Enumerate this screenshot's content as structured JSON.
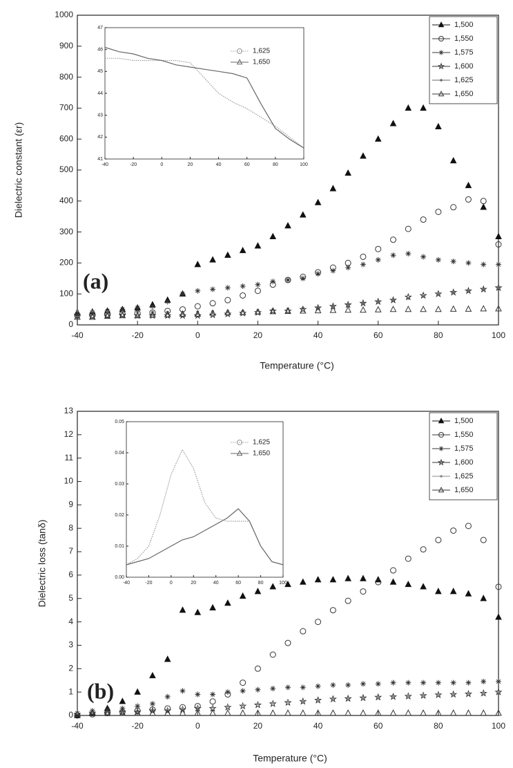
{
  "chart_data": [
    {
      "type": "scatter",
      "xlabel": "Temperature (°C)",
      "ylabel": "Dielectric constant (εr)",
      "annotation": "(a)",
      "xlim": [
        -40,
        100
      ],
      "ylim": [
        0,
        1000
      ],
      "xticks": [
        -40,
        -20,
        0,
        20,
        40,
        60,
        80,
        100
      ],
      "yticks": [
        0,
        100,
        200,
        300,
        400,
        500,
        600,
        700,
        800,
        900,
        1000
      ],
      "legend": "upper right",
      "x": [
        -40,
        -35,
        -30,
        -25,
        -20,
        -15,
        -10,
        -5,
        0,
        5,
        10,
        15,
        20,
        25,
        30,
        35,
        40,
        45,
        50,
        55,
        60,
        65,
        70,
        75,
        80,
        85,
        90,
        95,
        100
      ],
      "series": [
        {
          "name": "1,500",
          "color": "#111111",
          "marker": "triangle-filled",
          "values": [
            40,
            42,
            45,
            50,
            55,
            65,
            80,
            100,
            195,
            210,
            225,
            240,
            255,
            285,
            320,
            355,
            395,
            440,
            490,
            545,
            600,
            650,
            700,
            700,
            640,
            530,
            450,
            380,
            285
          ]
        },
        {
          "name": "1,550",
          "color": "#333333",
          "marker": "circle",
          "values": [
            30,
            30,
            32,
            35,
            38,
            40,
            45,
            50,
            60,
            70,
            80,
            95,
            110,
            130,
            145,
            155,
            170,
            185,
            200,
            220,
            245,
            275,
            310,
            340,
            365,
            380,
            405,
            400,
            260
          ]
        },
        {
          "name": "1,575",
          "color": "#333333",
          "marker": "asterisk",
          "values": [
            35,
            40,
            45,
            50,
            55,
            60,
            75,
            100,
            110,
            115,
            120,
            125,
            130,
            140,
            145,
            150,
            165,
            175,
            185,
            195,
            210,
            225,
            230,
            220,
            210,
            205,
            200,
            195,
            195
          ]
        },
        {
          "name": "1,600",
          "color": "#333333",
          "marker": "star",
          "values": [
            30,
            28,
            30,
            32,
            30,
            30,
            30,
            30,
            30,
            32,
            35,
            38,
            40,
            45,
            45,
            50,
            55,
            60,
            65,
            70,
            75,
            80,
            90,
            95,
            100,
            105,
            110,
            115,
            120
          ]
        },
        {
          "name": "1,625",
          "color": "#666666",
          "marker": "dot",
          "values": [
            45,
            44,
            43,
            42,
            42,
            41,
            41,
            41,
            42,
            43,
            44,
            45,
            47,
            50,
            52,
            55,
            58,
            62,
            66,
            70,
            75,
            80,
            86,
            92,
            98,
            104,
            110,
            116,
            122
          ]
        },
        {
          "name": "1,650",
          "color": "#333333",
          "marker": "triangle",
          "values": [
            25,
            25,
            28,
            30,
            30,
            32,
            33,
            35,
            35,
            38,
            40,
            40,
            42,
            43,
            44,
            45,
            46,
            47,
            48,
            48,
            49,
            50,
            50,
            50,
            50,
            51,
            51,
            52,
            52
          ]
        }
      ]
    },
    {
      "type": "line",
      "xlim": [
        -40,
        100
      ],
      "ylim": [
        41,
        47
      ],
      "xticks": [
        -40,
        -20,
        0,
        20,
        40,
        60,
        80,
        100
      ],
      "yticks": [
        41,
        42,
        43,
        44,
        45,
        46,
        47
      ],
      "legend": "upper right",
      "x": [
        -40,
        -30,
        -20,
        -10,
        0,
        10,
        20,
        30,
        40,
        50,
        60,
        70,
        80,
        90,
        100
      ],
      "series": [
        {
          "name": "1,625",
          "color": "#999999",
          "marker": "circle",
          "values": [
            45.6,
            45.6,
            45.5,
            45.5,
            45.5,
            45.5,
            45.4,
            44.7,
            44.0,
            43.6,
            43.3,
            42.9,
            42.5,
            42.0,
            41.5
          ]
        },
        {
          "name": "1,650",
          "color": "#666666",
          "marker": "triangle",
          "values": [
            46.1,
            45.9,
            45.8,
            45.6,
            45.5,
            45.3,
            45.2,
            45.1,
            45.0,
            44.9,
            44.7,
            43.5,
            42.4,
            41.9,
            41.5
          ]
        }
      ]
    },
    {
      "type": "scatter",
      "xlabel": "Temperature (°C)",
      "ylabel": "Dielectric loss (tanδ)",
      "annotation": "(b)",
      "xlim": [
        -40,
        100
      ],
      "ylim": [
        0,
        13
      ],
      "xticks": [
        -40,
        -20,
        0,
        20,
        40,
        60,
        80,
        100
      ],
      "yticks": [
        0,
        1,
        2,
        3,
        4,
        5,
        6,
        7,
        8,
        9,
        10,
        11,
        12,
        13
      ],
      "legend": "upper right",
      "x": [
        -40,
        -35,
        -30,
        -25,
        -20,
        -15,
        -10,
        -5,
        0,
        5,
        10,
        15,
        20,
        25,
        30,
        35,
        40,
        45,
        50,
        55,
        60,
        65,
        70,
        75,
        80,
        85,
        90,
        95,
        100
      ],
      "series": [
        {
          "name": "1,500",
          "color": "#111111",
          "marker": "triangle-filled",
          "values": [
            0,
            0.1,
            0.3,
            0.6,
            1.0,
            1.7,
            2.4,
            4.5,
            4.4,
            4.6,
            4.8,
            5.1,
            5.3,
            5.5,
            5.6,
            5.7,
            5.8,
            5.8,
            5.85,
            5.85,
            5.8,
            5.7,
            5.6,
            5.5,
            5.3,
            5.3,
            5.2,
            5.0,
            4.2
          ]
        },
        {
          "name": "1,550",
          "color": "#333333",
          "marker": "circle",
          "values": [
            0,
            0.05,
            0.1,
            0.15,
            0.2,
            0.25,
            0.3,
            0.35,
            0.4,
            0.6,
            0.9,
            1.4,
            2.0,
            2.6,
            3.1,
            3.6,
            4.0,
            4.5,
            4.9,
            5.3,
            5.7,
            6.2,
            6.7,
            7.1,
            7.5,
            7.9,
            8.1,
            7.5,
            5.5
          ]
        },
        {
          "name": "1,575",
          "color": "#333333",
          "marker": "asterisk",
          "values": [
            0.1,
            0.2,
            0.25,
            0.3,
            0.4,
            0.5,
            0.8,
            1.05,
            0.9,
            0.9,
            1.0,
            1.05,
            1.1,
            1.15,
            1.2,
            1.2,
            1.25,
            1.3,
            1.3,
            1.35,
            1.35,
            1.4,
            1.4,
            1.4,
            1.4,
            1.4,
            1.4,
            1.45,
            1.45
          ]
        },
        {
          "name": "1,600",
          "color": "#333333",
          "marker": "star",
          "values": [
            0.05,
            0.1,
            0.1,
            0.15,
            0.15,
            0.2,
            0.2,
            0.25,
            0.3,
            0.3,
            0.35,
            0.4,
            0.45,
            0.5,
            0.55,
            0.6,
            0.65,
            0.7,
            0.72,
            0.75,
            0.78,
            0.8,
            0.82,
            0.85,
            0.88,
            0.9,
            0.92,
            0.95,
            1.0
          ]
        },
        {
          "name": "1,625",
          "color": "#888888",
          "marker": "dot",
          "values": [
            0.1,
            0.12,
            0.15,
            0.15,
            0.2,
            0.2,
            0.25,
            0.3,
            0.35,
            0.35,
            0.4,
            0.45,
            0.5,
            0.55,
            0.6,
            0.62,
            0.65,
            0.7,
            0.72,
            0.75,
            0.78,
            0.8,
            0.85,
            0.88,
            0.9,
            0.92,
            0.95,
            0.98,
            1.0
          ]
        },
        {
          "name": "1,650",
          "color": "#333333",
          "marker": "triangle",
          "values": [
            0.05,
            0.08,
            0.1,
            0.1,
            0.1,
            0.1,
            0.1,
            0.1,
            0.1,
            0.1,
            0.1,
            0.1,
            0.1,
            0.1,
            0.1,
            0.1,
            0.1,
            0.1,
            0.1,
            0.1,
            0.1,
            0.1,
            0.1,
            0.1,
            0.1,
            0.1,
            0.1,
            0.1,
            0.1
          ]
        }
      ]
    },
    {
      "type": "line",
      "xlim": [
        -40,
        100
      ],
      "ylim": [
        0,
        0.05
      ],
      "xticks": [
        -40,
        -20,
        0,
        20,
        40,
        60,
        80,
        100
      ],
      "yticks": [
        {
          "value": 0,
          "label": "0.00"
        },
        0.01,
        0.02,
        0.03,
        0.04,
        0.05
      ],
      "legend": "upper right",
      "x": [
        -40,
        -30,
        -20,
        -10,
        0,
        10,
        20,
        30,
        40,
        50,
        60,
        70,
        80,
        90,
        100
      ],
      "series": [
        {
          "name": "1,625",
          "color": "#999999",
          "marker": "circle",
          "values": [
            0.004,
            0.006,
            0.01,
            0.02,
            0.033,
            0.041,
            0.035,
            0.024,
            0.019,
            0.018,
            0.018,
            0.018,
            0.01,
            0.005,
            0.004
          ]
        },
        {
          "name": "1,650",
          "color": "#666666",
          "marker": "triangle",
          "values": [
            0.004,
            0.005,
            0.006,
            0.008,
            0.01,
            0.012,
            0.013,
            0.015,
            0.017,
            0.019,
            0.022,
            0.018,
            0.01,
            0.005,
            0.004
          ]
        }
      ]
    }
  ]
}
